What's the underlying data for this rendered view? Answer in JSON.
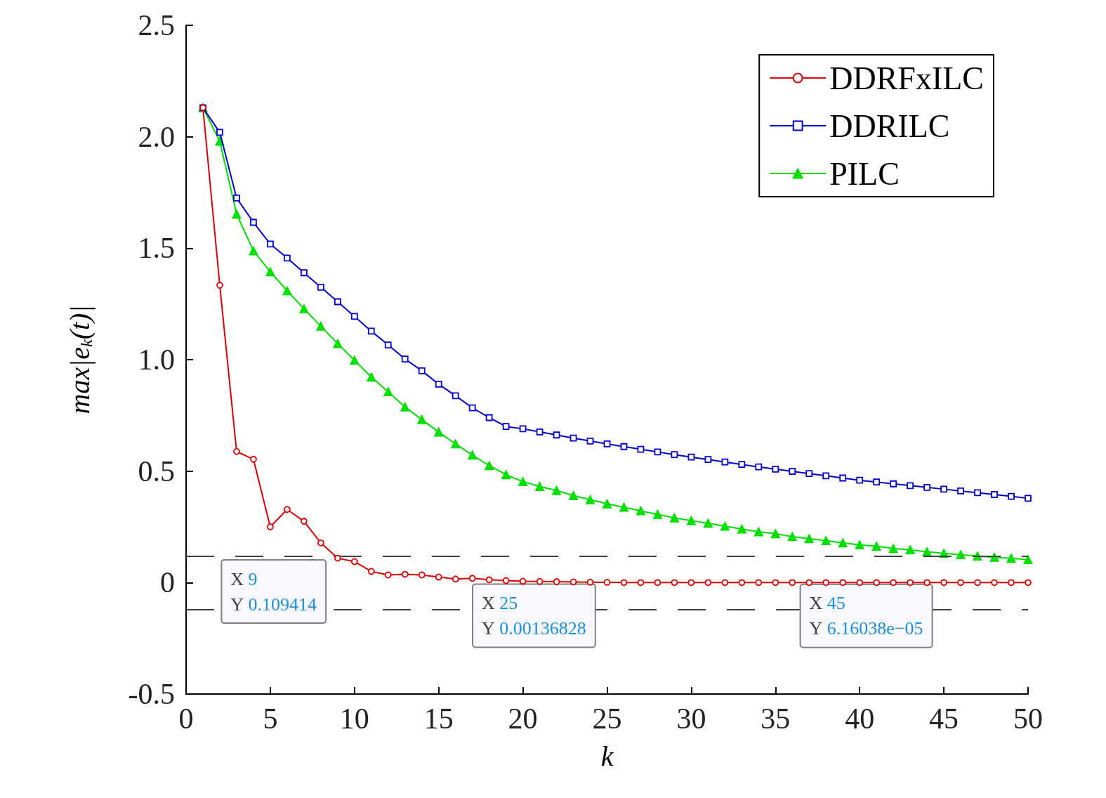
{
  "chart_data": {
    "type": "line",
    "xlabel": "k",
    "ylabel": "max|e$_{k}$(t)|",
    "x": [
      1,
      2,
      3,
      4,
      5,
      6,
      7,
      8,
      9,
      10,
      11,
      12,
      13,
      14,
      15,
      16,
      17,
      18,
      19,
      20,
      21,
      22,
      23,
      24,
      25,
      26,
      27,
      28,
      29,
      30,
      31,
      32,
      33,
      34,
      35,
      36,
      37,
      38,
      39,
      40,
      41,
      42,
      43,
      44,
      45,
      46,
      47,
      48,
      49,
      50
    ],
    "series": [
      {
        "name": "DDRFxILC",
        "color": "#e00000",
        "marker": "circle",
        "values": [
          2.13,
          1.334,
          0.588,
          0.553,
          0.25,
          0.328,
          0.275,
          0.178,
          0.109414,
          0.094,
          0.05,
          0.034,
          0.037,
          0.034,
          0.025,
          0.016,
          0.019,
          0.0125,
          0.009,
          0.006,
          0.005,
          0.004,
          0.003,
          0.002,
          0.00136828,
          0,
          0,
          0,
          0,
          0,
          0,
          0,
          0,
          0,
          0,
          0,
          0,
          0,
          0,
          0,
          0,
          0,
          0,
          0,
          6.16038e-05,
          0,
          0,
          0,
          0,
          0
        ]
      },
      {
        "name": "DDRILC",
        "color": "#0000d0",
        "marker": "square",
        "values": [
          2.13,
          2.02,
          1.725,
          1.616,
          1.519,
          1.456,
          1.39,
          1.325,
          1.26,
          1.194,
          1.128,
          1.066,
          1.003,
          0.95,
          0.89,
          0.838,
          0.784,
          0.74,
          0.7,
          0.69,
          0.676,
          0.662,
          0.648,
          0.635,
          0.622,
          0.61,
          0.598,
          0.586,
          0.574,
          0.563,
          0.552,
          0.541,
          0.53,
          0.519,
          0.509,
          0.499,
          0.489,
          0.479,
          0.469,
          0.459,
          0.451,
          0.443,
          0.435,
          0.427,
          0.419,
          0.411,
          0.403,
          0.395,
          0.387,
          0.378
        ]
      },
      {
        "name": "PILC",
        "color": "#00e000",
        "marker": "triangle",
        "values": [
          2.13,
          1.98,
          1.653,
          1.488,
          1.394,
          1.309,
          1.228,
          1.15,
          1.072,
          0.997,
          0.922,
          0.856,
          0.788,
          0.731,
          0.675,
          0.622,
          0.572,
          0.525,
          0.484,
          0.453,
          0.431,
          0.413,
          0.39,
          0.372,
          0.353,
          0.338,
          0.322,
          0.306,
          0.29,
          0.278,
          0.266,
          0.253,
          0.24,
          0.228,
          0.219,
          0.206,
          0.197,
          0.188,
          0.178,
          0.169,
          0.163,
          0.153,
          0.147,
          0.138,
          0.131,
          0.125,
          0.119,
          0.113,
          0.109,
          0.103
        ]
      }
    ],
    "xlim": [
      0,
      50
    ],
    "xticks": [
      0,
      5,
      10,
      15,
      20,
      25,
      30,
      35,
      40,
      45,
      50
    ],
    "ylim": [
      -0.5,
      2.5
    ],
    "yticks": [
      {
        "value": -0.5,
        "label": "-0.5"
      },
      0,
      {
        "value": 0.5,
        "label": "0.5"
      },
      {
        "value": 1,
        "label": "1.0"
      },
      {
        "value": 1.5,
        "label": "1.5"
      },
      {
        "value": 2,
        "label": "2.0"
      },
      {
        "value": 2.5,
        "label": "2.5"
      }
    ],
    "ref_lines": [
      {
        "axis": "y",
        "value": 0.12,
        "color": "#404040",
        "line_style": "dashed"
      },
      {
        "axis": "y",
        "value": -0.12,
        "color": "#404040",
        "line_style": "dashed"
      }
    ],
    "annotations": [
      {
        "text": "X 9\nY 0.109414",
        "x": 9,
        "y": 0.109414
      },
      {
        "text": "X 25\nY 0.00136828",
        "x": 25,
        "y": 0.00136828
      },
      {
        "text": "X 45\nY 6.16038e−05",
        "x": 45,
        "y": 6.16038e-05
      }
    ],
    "grid": false,
    "legend": "top right"
  }
}
